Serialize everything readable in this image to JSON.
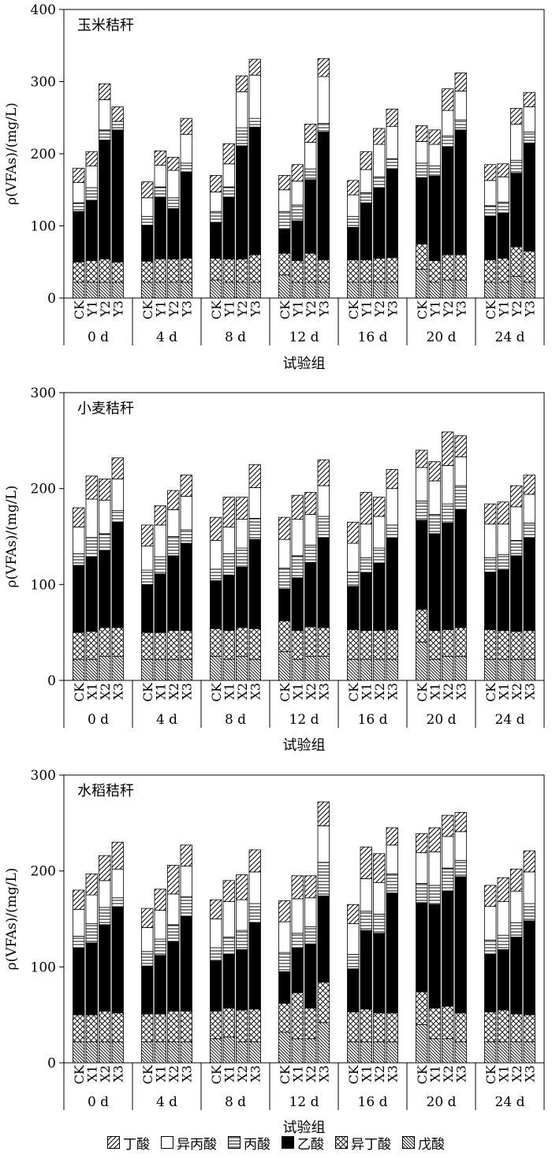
{
  "legend": [
    {
      "name": "丁酸",
      "pattern": "fwd"
    },
    {
      "name": "异丙酸",
      "pattern": "white"
    },
    {
      "name": "丙酸",
      "pattern": "horiz"
    },
    {
      "name": "乙酸",
      "pattern": "black"
    },
    {
      "name": "异丁酸",
      "pattern": "cross"
    },
    {
      "name": "戊酸",
      "pattern": "back"
    }
  ],
  "chart_data": [
    {
      "type": "bar",
      "stacked": true,
      "title": "玉米秸秆",
      "xlabel": "试验组",
      "ylabel": "ρ(VFAs)/(mg/L)",
      "ylim": [
        0,
        400
      ],
      "yticks": [
        0,
        100,
        200,
        300,
        400
      ],
      "day_groups": [
        "0 d",
        "4 d",
        "8 d",
        "12 d",
        "16 d",
        "20 d",
        "24 d"
      ],
      "bar_labels": [
        "CK",
        "Y1",
        "Y2",
        "Y3"
      ],
      "series_order_bottom_to_top": [
        "戊酸",
        "异丁酸",
        "乙酸",
        "丙酸",
        "异丙酸",
        "丁酸"
      ],
      "values": [
        [
          [
            22,
            28,
            70,
            12,
            28,
            20
          ],
          [
            22,
            30,
            83,
            18,
            30,
            20
          ],
          [
            22,
            32,
            165,
            14,
            42,
            22
          ],
          [
            22,
            28,
            183,
            12,
            0,
            20
          ]
        ],
        [
          [
            22,
            29,
            50,
            12,
            26,
            22
          ],
          [
            22,
            32,
            85,
            15,
            30,
            20
          ],
          [
            22,
            32,
            70,
            15,
            38,
            18
          ],
          [
            22,
            33,
            120,
            12,
            40,
            22
          ]
        ],
        [
          [
            25,
            30,
            50,
            15,
            27,
            23
          ],
          [
            22,
            32,
            85,
            15,
            32,
            28
          ],
          [
            22,
            32,
            157,
            25,
            50,
            22
          ],
          [
            22,
            38,
            177,
            12,
            60,
            22
          ]
        ],
        [
          [
            32,
            30,
            33,
            25,
            30,
            20
          ],
          [
            22,
            30,
            55,
            22,
            33,
            23
          ],
          [
            22,
            40,
            102,
            15,
            37,
            25
          ],
          [
            22,
            31,
            177,
            12,
            65,
            25
          ]
        ],
        [
          [
            22,
            31,
            45,
            15,
            30,
            20
          ],
          [
            22,
            31,
            79,
            14,
            32,
            25
          ],
          [
            22,
            33,
            97,
            16,
            45,
            22
          ],
          [
            22,
            34,
            123,
            14,
            45,
            24
          ]
        ],
        [
          [
            40,
            35,
            92,
            20,
            30,
            22
          ],
          [
            22,
            30,
            117,
            14,
            30,
            20
          ],
          [
            25,
            35,
            150,
            15,
            35,
            30
          ],
          [
            25,
            35,
            173,
            14,
            40,
            25
          ]
        ],
        [
          [
            22,
            31,
            60,
            15,
            35,
            22
          ],
          [
            22,
            33,
            62,
            16,
            35,
            18
          ],
          [
            30,
            41,
            102,
            18,
            50,
            22
          ],
          [
            22,
            43,
            150,
            15,
            35,
            20
          ]
        ]
      ]
    },
    {
      "type": "bar",
      "stacked": true,
      "title": "小麦秸秆",
      "xlabel": "试验组",
      "ylabel": "ρ(VFAs)/(mg/L)",
      "ylim": [
        0,
        300
      ],
      "yticks": [
        0,
        100,
        200,
        300
      ],
      "day_groups": [
        "0 d",
        "4 d",
        "8 d",
        "12 d",
        "16 d",
        "20 d",
        "24 d"
      ],
      "bar_labels": [
        "CK",
        "X1",
        "X2",
        "X3"
      ],
      "series_order_bottom_to_top": [
        "戊酸",
        "异丁酸",
        "乙酸",
        "丙酸",
        "异丙酸",
        "丁酸"
      ],
      "values": [
        [
          [
            22,
            28,
            70,
            12,
            28,
            20
          ],
          [
            22,
            29,
            78,
            20,
            40,
            24
          ],
          [
            25,
            30,
            80,
            18,
            35,
            22
          ],
          [
            25,
            30,
            110,
            12,
            33,
            22
          ]
        ],
        [
          [
            22,
            28,
            50,
            15,
            25,
            22
          ],
          [
            22,
            28,
            61,
            18,
            33,
            20
          ],
          [
            22,
            30,
            78,
            20,
            28,
            20
          ],
          [
            22,
            30,
            91,
            14,
            35,
            22
          ]
        ],
        [
          [
            25,
            29,
            50,
            12,
            30,
            24
          ],
          [
            22,
            30,
            58,
            22,
            28,
            31
          ],
          [
            25,
            30,
            63,
            20,
            30,
            23
          ],
          [
            22,
            32,
            93,
            22,
            32,
            24
          ]
        ],
        [
          [
            30,
            32,
            33,
            22,
            30,
            23
          ],
          [
            22,
            30,
            55,
            23,
            38,
            25
          ],
          [
            25,
            31,
            67,
            18,
            32,
            23
          ],
          [
            25,
            30,
            94,
            22,
            32,
            27
          ]
        ],
        [
          [
            22,
            31,
            45,
            15,
            30,
            22
          ],
          [
            22,
            30,
            60,
            16,
            35,
            33
          ],
          [
            22,
            30,
            70,
            16,
            33,
            20
          ],
          [
            22,
            31,
            95,
            14,
            38,
            20
          ]
        ],
        [
          [
            40,
            34,
            93,
            20,
            35,
            18
          ],
          [
            22,
            30,
            101,
            20,
            35,
            20
          ],
          [
            25,
            28,
            111,
            20,
            40,
            35
          ],
          [
            25,
            30,
            123,
            25,
            30,
            22
          ]
        ],
        [
          [
            22,
            31,
            60,
            15,
            35,
            21
          ],
          [
            22,
            30,
            63,
            16,
            32,
            23
          ],
          [
            22,
            29,
            79,
            16,
            35,
            22
          ],
          [
            22,
            30,
            97,
            15,
            30,
            20
          ]
        ]
      ]
    },
    {
      "type": "bar",
      "stacked": true,
      "title": "水稻秸秆",
      "xlabel": "试验组",
      "ylabel": "ρ(VFAs)/(mg/L)",
      "ylim": [
        0,
        300
      ],
      "yticks": [
        0,
        100,
        200,
        300
      ],
      "day_groups": [
        "0 d",
        "4 d",
        "8 d",
        "12 d",
        "16 d",
        "20 d",
        "24 d"
      ],
      "bar_labels": [
        "CK",
        "X1",
        "X2",
        "X3"
      ],
      "series_order_bottom_to_top": [
        "戊酸",
        "异丁酸",
        "乙酸",
        "丙酸",
        "异丙酸",
        "丁酸"
      ],
      "values": [
        [
          [
            22,
            28,
            70,
            12,
            28,
            20
          ],
          [
            22,
            28,
            75,
            20,
            30,
            22
          ],
          [
            22,
            32,
            90,
            18,
            28,
            26
          ],
          [
            22,
            30,
            110,
            10,
            30,
            28
          ]
        ],
        [
          [
            22,
            29,
            50,
            15,
            25,
            20
          ],
          [
            22,
            29,
            61,
            17,
            30,
            22
          ],
          [
            22,
            32,
            72,
            18,
            32,
            30
          ],
          [
            22,
            32,
            99,
            20,
            32,
            22
          ]
        ],
        [
          [
            25,
            29,
            52,
            14,
            30,
            20
          ],
          [
            27,
            30,
            56,
            18,
            37,
            22
          ],
          [
            22,
            33,
            63,
            20,
            32,
            26
          ],
          [
            22,
            34,
            90,
            20,
            33,
            23
          ]
        ],
        [
          [
            32,
            30,
            33,
            20,
            32,
            22
          ],
          [
            25,
            48,
            47,
            15,
            36,
            24
          ],
          [
            25,
            32,
            67,
            18,
            30,
            23
          ],
          [
            42,
            42,
            90,
            35,
            38,
            25
          ]
        ],
        [
          [
            22,
            31,
            45,
            15,
            32,
            20
          ],
          [
            22,
            34,
            82,
            20,
            34,
            33
          ],
          [
            22,
            30,
            83,
            20,
            33,
            30
          ],
          [
            22,
            30,
            125,
            20,
            30,
            18
          ]
        ],
        [
          [
            40,
            34,
            93,
            20,
            32,
            20
          ],
          [
            25,
            32,
            108,
            20,
            35,
            25
          ],
          [
            25,
            34,
            120,
            24,
            33,
            22
          ],
          [
            22,
            30,
            142,
            17,
            30,
            20
          ]
        ],
        [
          [
            22,
            31,
            60,
            15,
            35,
            22
          ],
          [
            22,
            33,
            63,
            15,
            35,
            25
          ],
          [
            22,
            29,
            80,
            15,
            33,
            23
          ],
          [
            22,
            28,
            98,
            18,
            33,
            22
          ]
        ]
      ]
    }
  ]
}
